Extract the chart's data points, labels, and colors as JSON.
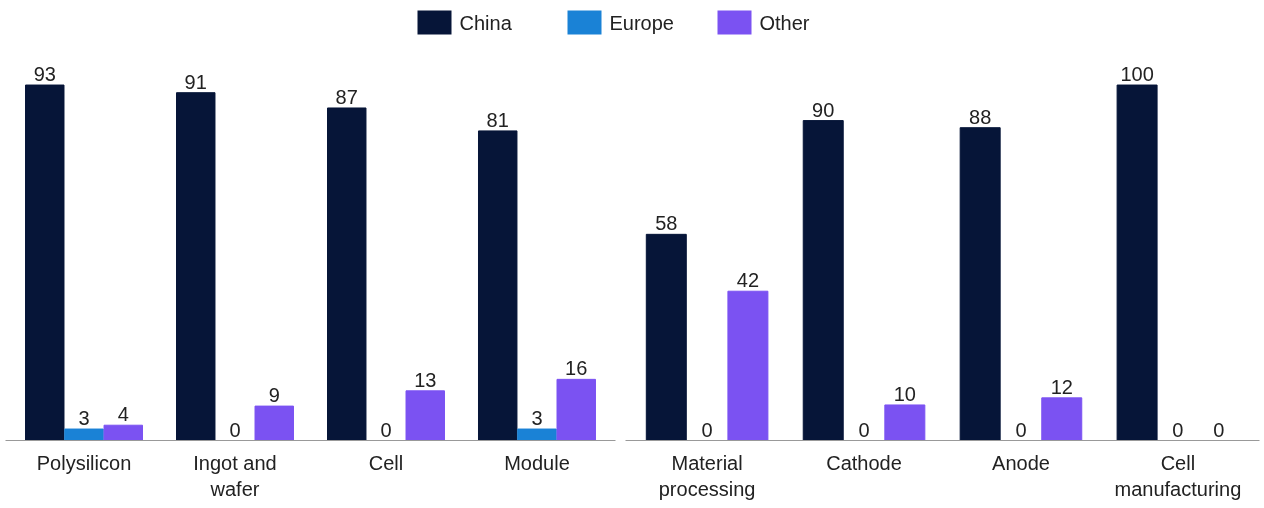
{
  "chart_data": [
    {
      "type": "bar",
      "categories": [
        "Polysilicon",
        "Ingot and wafer",
        "Cell",
        "Module"
      ],
      "series": [
        {
          "name": "China",
          "color": "#061538",
          "values": [
            93,
            91,
            87,
            81
          ]
        },
        {
          "name": "Europe",
          "color": "#1a82d6",
          "values": [
            3,
            0,
            0,
            3
          ]
        },
        {
          "name": "Other",
          "color": "#7b52f2",
          "values": [
            4,
            9,
            13,
            16
          ]
        }
      ],
      "data_labels": true,
      "legend": "top",
      "tick_labels": "x",
      "grid": false
    },
    {
      "type": "bar",
      "categories": [
        "Material processing",
        "Cathode",
        "Anode",
        "Cell manufacturing"
      ],
      "series": [
        {
          "color": "#061538",
          "values": [
            58,
            90,
            88,
            100
          ]
        },
        {
          "color": "#1a82d6",
          "values": [
            0,
            0,
            0,
            0
          ]
        },
        {
          "color": "#7b52f2",
          "values": [
            42,
            10,
            12,
            0
          ]
        }
      ],
      "data_labels": true,
      "tick_labels": "x",
      "grid": false
    }
  ]
}
